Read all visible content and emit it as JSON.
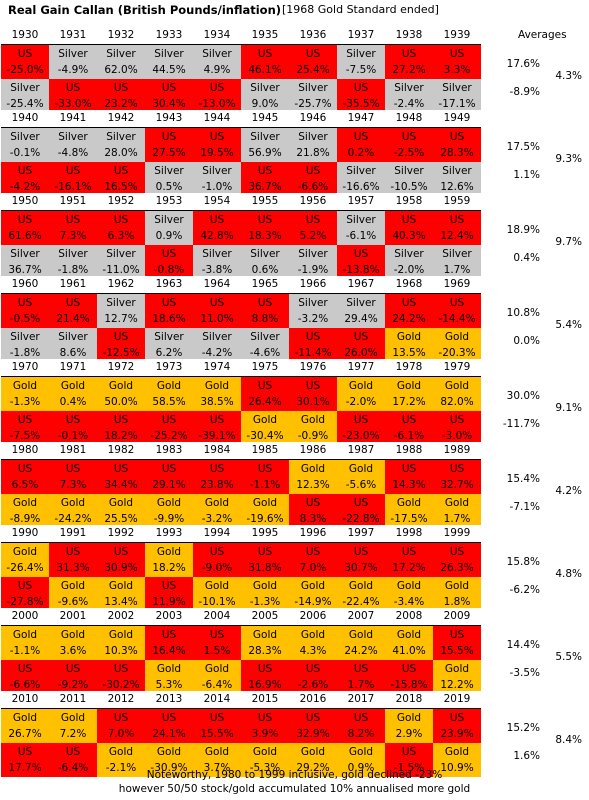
{
  "title": "Real Gain Callan (British Pounds/inflation)",
  "subtitle": "[1968 Gold Standard ended]",
  "averages_header": "Averages",
  "colors": {
    "US": "#ff0000",
    "Silver": "#c9c9c9",
    "Gold": "#ffc000"
  },
  "decades": [
    {
      "years": [
        "1930",
        "1931",
        "1932",
        "1933",
        "1934",
        "1935",
        "1936",
        "1937",
        "1938",
        "1939"
      ],
      "row1": [
        [
          "US",
          "-25.0%"
        ],
        [
          "Silver",
          "-4.9%"
        ],
        [
          "Silver",
          "62.0%"
        ],
        [
          "Silver",
          "44.5%"
        ],
        [
          "Silver",
          "4.9%"
        ],
        [
          "US",
          "46.1%"
        ],
        [
          "US",
          "25.4%"
        ],
        [
          "Silver",
          "-7.5%"
        ],
        [
          "US",
          "27.2%"
        ],
        [
          "US",
          "3.3%"
        ]
      ],
      "row2": [
        [
          "Silver",
          "-25.4%"
        ],
        [
          "US",
          "-33.0%"
        ],
        [
          "US",
          "23.2%"
        ],
        [
          "US",
          "30.4%"
        ],
        [
          "US",
          "-13.0%"
        ],
        [
          "Silver",
          "9.0%"
        ],
        [
          "Silver",
          "-25.7%"
        ],
        [
          "US",
          "-35.5%"
        ],
        [
          "Silver",
          "-2.4%"
        ],
        [
          "Silver",
          "-17.1%"
        ]
      ],
      "avg_top": "17.6%",
      "avg_mid": "4.3%",
      "avg_bot": "-8.9%"
    },
    {
      "years": [
        "1940",
        "1941",
        "1942",
        "1943",
        "1944",
        "1945",
        "1946",
        "1947",
        "1948",
        "1949"
      ],
      "row1": [
        [
          "Silver",
          "-0.1%"
        ],
        [
          "Silver",
          "-4.8%"
        ],
        [
          "Silver",
          "28.0%"
        ],
        [
          "US",
          "27.5%"
        ],
        [
          "US",
          "19.5%"
        ],
        [
          "Silver",
          "56.9%"
        ],
        [
          "Silver",
          "21.8%"
        ],
        [
          "US",
          "0.2%"
        ],
        [
          "US",
          "-2.5%"
        ],
        [
          "US",
          "28.3%"
        ]
      ],
      "row2": [
        [
          "US",
          "-4.2%"
        ],
        [
          "US",
          "-16.1%"
        ],
        [
          "US",
          "16.5%"
        ],
        [
          "Silver",
          "0.5%"
        ],
        [
          "Silver",
          "-1.0%"
        ],
        [
          "US",
          "36.7%"
        ],
        [
          "US",
          "-6.6%"
        ],
        [
          "Silver",
          "-16.6%"
        ],
        [
          "Silver",
          "-10.5%"
        ],
        [
          "Silver",
          "12.6%"
        ]
      ],
      "avg_top": "17.5%",
      "avg_mid": "9.3%",
      "avg_bot": "1.1%"
    },
    {
      "years": [
        "1950",
        "1951",
        "1952",
        "1953",
        "1954",
        "1955",
        "1956",
        "1957",
        "1958",
        "1959"
      ],
      "row1": [
        [
          "US",
          "61.6%"
        ],
        [
          "US",
          "7.3%"
        ],
        [
          "US",
          "6.3%"
        ],
        [
          "Silver",
          "0.9%"
        ],
        [
          "US",
          "42.8%"
        ],
        [
          "US",
          "18.3%"
        ],
        [
          "US",
          "5.2%"
        ],
        [
          "Silver",
          "-6.1%"
        ],
        [
          "US",
          "40.3%"
        ],
        [
          "US",
          "12.4%"
        ]
      ],
      "row2": [
        [
          "Silver",
          "36.7%"
        ],
        [
          "Silver",
          "-1.8%"
        ],
        [
          "Silver",
          "-11.0%"
        ],
        [
          "US",
          "-0.8%"
        ],
        [
          "Silver",
          "-3.8%"
        ],
        [
          "Silver",
          "0.6%"
        ],
        [
          "Silver",
          "-1.9%"
        ],
        [
          "US",
          "-13.8%"
        ],
        [
          "Silver",
          "-2.0%"
        ],
        [
          "Silver",
          "1.7%"
        ]
      ],
      "avg_top": "18.9%",
      "avg_mid": "9.7%",
      "avg_bot": "0.4%"
    },
    {
      "years": [
        "1960",
        "1961",
        "1962",
        "1963",
        "1964",
        "1965",
        "1966",
        "1967",
        "1968",
        "1969"
      ],
      "row1": [
        [
          "US",
          "-0.5%"
        ],
        [
          "US",
          "21.4%"
        ],
        [
          "Silver",
          "12.7%"
        ],
        [
          "US",
          "18.6%"
        ],
        [
          "US",
          "11.0%"
        ],
        [
          "US",
          "8.8%"
        ],
        [
          "Silver",
          "-3.2%"
        ],
        [
          "Silver",
          "29.4%"
        ],
        [
          "US",
          "24.2%"
        ],
        [
          "US",
          "-14.4%"
        ]
      ],
      "row2": [
        [
          "Silver",
          "-1.8%"
        ],
        [
          "Silver",
          "8.6%"
        ],
        [
          "US",
          "-12.5%"
        ],
        [
          "Silver",
          "6.2%"
        ],
        [
          "Silver",
          "-4.2%"
        ],
        [
          "Silver",
          "-4.6%"
        ],
        [
          "US",
          "-11.4%"
        ],
        [
          "US",
          "26.0%"
        ],
        [
          "Gold",
          "13.5%"
        ],
        [
          "Gold",
          "-20.3%"
        ]
      ],
      "avg_top": "10.8%",
      "avg_mid": "5.4%",
      "avg_bot": "0.0%"
    },
    {
      "years": [
        "1970",
        "1971",
        "1972",
        "1973",
        "1974",
        "1975",
        "1976",
        "1977",
        "1978",
        "1979"
      ],
      "row1": [
        [
          "Gold",
          "-1.3%"
        ],
        [
          "Gold",
          "0.4%"
        ],
        [
          "Gold",
          "50.0%"
        ],
        [
          "Gold",
          "58.5%"
        ],
        [
          "Gold",
          "38.5%"
        ],
        [
          "US",
          "26.4%"
        ],
        [
          "US",
          "30.1%"
        ],
        [
          "Gold",
          "-2.0%"
        ],
        [
          "Gold",
          "17.2%"
        ],
        [
          "Gold",
          "82.0%"
        ]
      ],
      "row2": [
        [
          "US",
          "-7.5%"
        ],
        [
          "US",
          "-0.1%"
        ],
        [
          "US",
          "18.2%"
        ],
        [
          "US",
          "-25.2%"
        ],
        [
          "US",
          "-39.1%"
        ],
        [
          "Gold",
          "-30.4%"
        ],
        [
          "Gold",
          "-0.9%"
        ],
        [
          "US",
          "-23.0%"
        ],
        [
          "US",
          "-6.1%"
        ],
        [
          "US",
          "-3.0%"
        ]
      ],
      "avg_top": "30.0%",
      "avg_mid": "9.1%",
      "avg_bot": "-11.7%"
    },
    {
      "years": [
        "1980",
        "1981",
        "1982",
        "1983",
        "1984",
        "1985",
        "1986",
        "1987",
        "1988",
        "1989"
      ],
      "row1": [
        [
          "US",
          "6.5%"
        ],
        [
          "US",
          "7.3%"
        ],
        [
          "US",
          "34.4%"
        ],
        [
          "US",
          "29.1%"
        ],
        [
          "US",
          "23.8%"
        ],
        [
          "US",
          "-1.1%"
        ],
        [
          "Gold",
          "12.3%"
        ],
        [
          "Gold",
          "-5.6%"
        ],
        [
          "US",
          "14.3%"
        ],
        [
          "US",
          "32.7%"
        ]
      ],
      "row2": [
        [
          "Gold",
          "-8.9%"
        ],
        [
          "Gold",
          "-24.2%"
        ],
        [
          "Gold",
          "25.5%"
        ],
        [
          "Gold",
          "-9.9%"
        ],
        [
          "Gold",
          "-3.2%"
        ],
        [
          "Gold",
          "-19.6%"
        ],
        [
          "US",
          "8.3%"
        ],
        [
          "US",
          "-22.8%"
        ],
        [
          "Gold",
          "-17.5%"
        ],
        [
          "Gold",
          "1.7%"
        ]
      ],
      "avg_top": "15.4%",
      "avg_mid": "4.2%",
      "avg_bot": "-7.1%"
    },
    {
      "years": [
        "1990",
        "1991",
        "1992",
        "1993",
        "1994",
        "1995",
        "1996",
        "1997",
        "1998",
        "1999"
      ],
      "row1": [
        [
          "Gold",
          "-26.4%"
        ],
        [
          "US",
          "31.3%"
        ],
        [
          "US",
          "30.9%"
        ],
        [
          "Gold",
          "18.2%"
        ],
        [
          "US",
          "-9.0%"
        ],
        [
          "US",
          "31.8%"
        ],
        [
          "US",
          "7.0%"
        ],
        [
          "US",
          "30.7%"
        ],
        [
          "US",
          "17.2%"
        ],
        [
          "US",
          "26.3%"
        ]
      ],
      "row2": [
        [
          "US",
          "-27.8%"
        ],
        [
          "Gold",
          "-9.6%"
        ],
        [
          "Gold",
          "13.4%"
        ],
        [
          "US",
          "11.9%"
        ],
        [
          "Gold",
          "-10.1%"
        ],
        [
          "Gold",
          "-1.3%"
        ],
        [
          "Gold",
          "-14.9%"
        ],
        [
          "Gold",
          "-22.4%"
        ],
        [
          "Gold",
          "-3.4%"
        ],
        [
          "Gold",
          "1.8%"
        ]
      ],
      "avg_top": "15.8%",
      "avg_mid": "4.8%",
      "avg_bot": "-6.2%"
    },
    {
      "years": [
        "2000",
        "2001",
        "2002",
        "2003",
        "2004",
        "2005",
        "2006",
        "2007",
        "2008",
        "2009"
      ],
      "row1": [
        [
          "Gold",
          "-1.1%"
        ],
        [
          "Gold",
          "3.6%"
        ],
        [
          "Gold",
          "10.3%"
        ],
        [
          "US",
          "16.4%"
        ],
        [
          "US",
          "1.5%"
        ],
        [
          "Gold",
          "28.3%"
        ],
        [
          "Gold",
          "4.3%"
        ],
        [
          "Gold",
          "24.2%"
        ],
        [
          "Gold",
          "41.0%"
        ],
        [
          "US",
          "15.5%"
        ]
      ],
      "row2": [
        [
          "US",
          "-6.6%"
        ],
        [
          "US",
          "-9.2%"
        ],
        [
          "US",
          "-30.2%"
        ],
        [
          "Gold",
          "5.3%"
        ],
        [
          "Gold",
          "-6.4%"
        ],
        [
          "US",
          "16.9%"
        ],
        [
          "US",
          "-2.6%"
        ],
        [
          "US",
          "1.7%"
        ],
        [
          "US",
          "-15.8%"
        ],
        [
          "Gold",
          "12.2%"
        ]
      ],
      "avg_top": "14.4%",
      "avg_mid": "5.5%",
      "avg_bot": "-3.5%"
    },
    {
      "years": [
        "2010",
        "2011",
        "2012",
        "2013",
        "2014",
        "2015",
        "2016",
        "2017",
        "2018",
        "2019"
      ],
      "row1": [
        [
          "Gold",
          "26.7%"
        ],
        [
          "Gold",
          "7.2%"
        ],
        [
          "US",
          "7.0%"
        ],
        [
          "US",
          "24.1%"
        ],
        [
          "US",
          "15.5%"
        ],
        [
          "US",
          "3.9%"
        ],
        [
          "US",
          "32.9%"
        ],
        [
          "US",
          "8.2%"
        ],
        [
          "Gold",
          "2.9%"
        ],
        [
          "US",
          "23.9%"
        ]
      ],
      "row2": [
        [
          "US",
          "17.7%"
        ],
        [
          "US",
          "-6.4%"
        ],
        [
          "Gold",
          "-2.1%"
        ],
        [
          "Gold",
          "-30.9%"
        ],
        [
          "Gold",
          "3.7%"
        ],
        [
          "Gold",
          "-5.3%"
        ],
        [
          "Gold",
          "29.2%"
        ],
        [
          "Gold",
          "0.9%"
        ],
        [
          "US",
          "-1.5%"
        ],
        [
          "Gold",
          "10.9%"
        ]
      ],
      "avg_top": "15.2%",
      "avg_mid": "8.4%",
      "avg_bot": "1.6%"
    }
  ],
  "footer": [
    "Noteworthy, 1980 to 1999 inclusive, gold declined -23%",
    "however 50/50 stock/gold accumulated 10% annualised more gold"
  ]
}
